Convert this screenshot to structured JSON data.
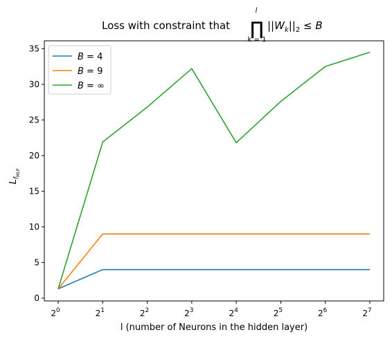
{
  "chart_data": {
    "type": "line",
    "title": {
      "prefix": "Loss with constraint that",
      "product_symbol": "∏",
      "upper": "l",
      "lower": "k = 1",
      "expression": "||W",
      "expression_sub": "k",
      "expression_tail": "||",
      "norm_sub": "2",
      "relation": " ≤ B"
    },
    "xlabel": "l (number of Neurons in the hidden layer)",
    "ylabel": {
      "base": "L",
      "sub": "f",
      "subsub": "MLP"
    },
    "x": [
      1,
      2,
      4,
      8,
      16,
      32,
      64,
      128
    ],
    "x_scale": "log2",
    "x_ticks": [
      {
        "base": "2",
        "exp": "0"
      },
      {
        "base": "2",
        "exp": "1"
      },
      {
        "base": "2",
        "exp": "2"
      },
      {
        "base": "2",
        "exp": "3"
      },
      {
        "base": "2",
        "exp": "4"
      },
      {
        "base": "2",
        "exp": "5"
      },
      {
        "base": "2",
        "exp": "6"
      },
      {
        "base": "2",
        "exp": "7"
      }
    ],
    "y_ticks": [
      "0",
      "5",
      "10",
      "15",
      "20",
      "25",
      "30",
      "35"
    ],
    "ylim": [
      -0.4,
      36.1
    ],
    "grid": false,
    "legend_position": "top-left",
    "series": [
      {
        "name": "B = 4",
        "name_var": "B",
        "name_rel": " = 4",
        "color": "#1f77b4",
        "values": [
          1.3,
          4.0,
          4.0,
          4.0,
          4.0,
          4.0,
          4.0,
          4.0
        ]
      },
      {
        "name": "B = 9",
        "name_var": "B",
        "name_rel": " = 9",
        "color": "#ff7f0e",
        "values": [
          1.3,
          9.0,
          9.0,
          9.0,
          9.0,
          9.0,
          9.0,
          9.0
        ]
      },
      {
        "name": "B = ∞",
        "name_var": "B",
        "name_rel": " = ∞",
        "color": "#2ca02c",
        "values": [
          1.3,
          21.9,
          26.8,
          32.2,
          21.8,
          27.6,
          32.5,
          34.5
        ]
      }
    ]
  }
}
